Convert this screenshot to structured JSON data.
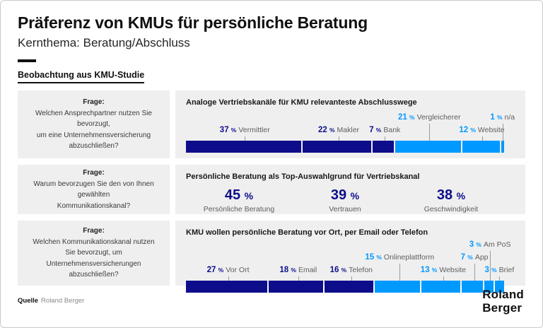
{
  "page": {
    "title": "Präferenz von KMUs für persönliche Beratung",
    "subtitle": "Kernthema: Beratung/Abschluss",
    "section_heading": "Beobachtung aus KMU-Studie",
    "source_label": "Quelle",
    "source_value": "Roland Berger",
    "logo_line1": "Roland",
    "logo_line2": "Berger"
  },
  "colors": {
    "navy": "#0d0d8c",
    "light_blue": "#0099ff",
    "panel_bg": "#efefef",
    "label_gray": "#5e5e5e",
    "tick_gray": "#9b9b9b"
  },
  "questions": [
    {
      "label": "Frage:",
      "lines": [
        "Welchen Ansprechpartner nutzen Sie bevorzugt,",
        "um eine Unternehmensversicherung",
        "abzuschließen?"
      ]
    },
    {
      "label": "Frage:",
      "lines": [
        "Warum bevorzugen Sie den von Ihnen gewählten",
        "Kommunikationskanal?"
      ]
    },
    {
      "label": "Frage:",
      "lines": [
        "Welchen Kommunikationskanal nutzen",
        "Sie bevorzugt, um Unternehmensversicherungen",
        "abzuschließen?"
      ]
    }
  ],
  "chart_data": [
    {
      "type": "bar",
      "variant": "stacked_horizontal",
      "title": "Analoge Vertriebskanäle für KMU relevanteste Abschlusswege",
      "categories": [
        "Vermittler",
        "Makler",
        "Bank",
        "Vergleicherer",
        "Website",
        "n/a"
      ],
      "values": [
        37,
        22,
        7,
        21,
        12,
        1
      ],
      "unit": "%",
      "segment_colors": [
        "navy",
        "navy",
        "navy",
        "light_blue",
        "light_blue",
        "light_blue"
      ],
      "label_tiers": [
        0,
        0,
        0,
        1,
        0,
        1
      ],
      "legend_position": "none",
      "grid": false
    },
    {
      "type": "bar",
      "variant": "stat_values",
      "title": "Persönliche Beratung als Top-Auswahlgrund für Vertriebskanal",
      "categories": [
        "Persönliche Beratung",
        "Vertrauen",
        "Geschwindigkeit"
      ],
      "values": [
        45,
        39,
        38
      ],
      "unit": "%",
      "value_color": "navy",
      "legend_position": "none",
      "grid": false
    },
    {
      "type": "bar",
      "variant": "stacked_horizontal",
      "title": "KMU wollen persönliche Beratung vor Ort, per Email oder Telefon",
      "categories": [
        "Vor Ort",
        "Email",
        "Telefon",
        "Onlineplattform",
        "Website",
        "App",
        "Am PoS",
        "Brief"
      ],
      "values": [
        27,
        18,
        16,
        15,
        13,
        7,
        3,
        3
      ],
      "unit": "%",
      "segment_colors": [
        "navy",
        "navy",
        "navy",
        "light_blue",
        "light_blue",
        "light_blue",
        "light_blue",
        "light_blue"
      ],
      "label_tiers": [
        0,
        0,
        0,
        1,
        0,
        1,
        2,
        0
      ],
      "legend_position": "none",
      "grid": false
    }
  ]
}
